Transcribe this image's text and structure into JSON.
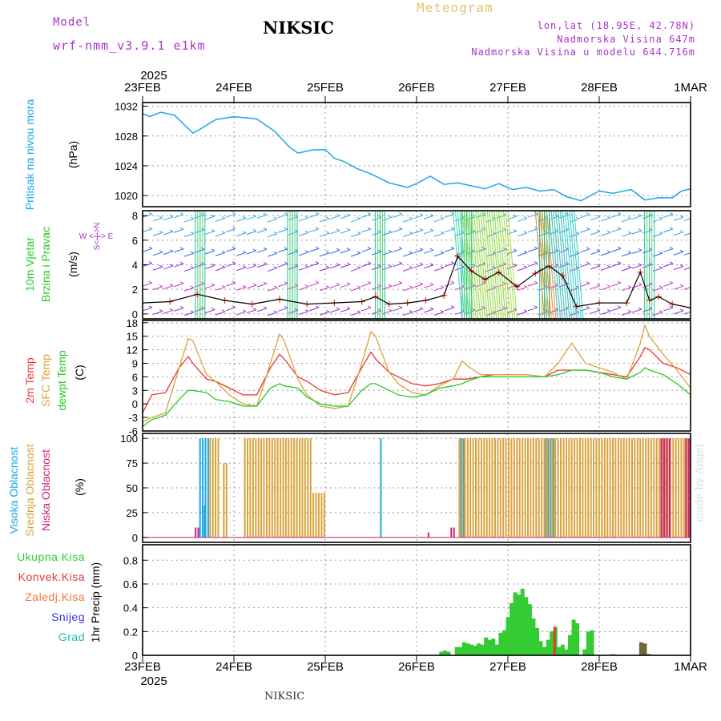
{
  "header": {
    "model_label": "Model",
    "model_value": "wrf-nmm_v3.9.1 e1km",
    "station": "NIKSIC",
    "title": "Meteogram",
    "lonlat": "lon,lat (18.95E, 42.78N)",
    "elevation": "Nadmorska Visina 647m",
    "model_elevation": "Nadmorska Visina u modelu 644.716m"
  },
  "footer": {
    "station": "NIKSIC",
    "credit": "made by Angel"
  },
  "colors": {
    "pressure": "#1aa6e8",
    "temp2m": "#ee3333",
    "sfc": "#d9a33b",
    "dew": "#22cc22",
    "high_cloud": "#1aa6e8",
    "mid_cloud": "#d9a33b",
    "low_cloud": "#cc2277",
    "total_precip": "#33cc33",
    "conv_precip": "#ee3333",
    "frz_precip": "#ee7733",
    "snow": "#3333ee",
    "graupel": "#22bbbb",
    "purple": "#aa33cc",
    "gold": "#e8c070"
  },
  "time_axis": {
    "year_top": "2025",
    "year_bottom": "2025",
    "dates": [
      "23FEB",
      "24FEB",
      "25FEB",
      "26FEB",
      "27FEB",
      "28FEB",
      "1MAR"
    ]
  },
  "chart_data": [
    {
      "type": "line",
      "panel": "pressure",
      "ylabel_lines": [
        "Pritisak na nivou mora",
        "(hPa)"
      ],
      "ylim": [
        1018.5,
        1032.5
      ],
      "yticks": [
        1020,
        1024,
        1028,
        1032
      ],
      "x_days": [
        0,
        0.08,
        0.2,
        0.35,
        0.45,
        0.55,
        0.6,
        0.8,
        1.0,
        1.25,
        1.45,
        1.6,
        1.7,
        1.85,
        2.0,
        2.1,
        2.2,
        2.35,
        2.5,
        2.7,
        2.9,
        3.0,
        3.15,
        3.3,
        3.45,
        3.6,
        3.75,
        3.9,
        4.05,
        4.2,
        4.35,
        4.5,
        4.65,
        4.8,
        5.0,
        5.15,
        5.35,
        5.5,
        5.65,
        5.8,
        5.9,
        6.0
      ],
      "series": [
        {
          "values": [
            1031.0,
            1030.6,
            1031.2,
            1030.8,
            1029.6,
            1028.4,
            1028.7,
            1030.2,
            1030.6,
            1030.3,
            1028.6,
            1026.6,
            1025.7,
            1026.1,
            1026.2,
            1025.0,
            1024.6,
            1023.6,
            1022.9,
            1021.7,
            1021.1,
            1021.6,
            1022.6,
            1021.5,
            1021.7,
            1021.3,
            1020.9,
            1021.6,
            1020.8,
            1021.1,
            1020.6,
            1020.8,
            1019.8,
            1019.3,
            1020.6,
            1020.3,
            1020.8,
            1019.4,
            1019.7,
            1019.7,
            1020.6,
            1020.9
          ]
        }
      ]
    },
    {
      "type": "line",
      "panel": "wind",
      "ylabel_lines": [
        "10m Vjetar",
        "Brzina i Pravac",
        "(m/s)"
      ],
      "compass_label": "W <-|-> E",
      "compass_vertical": "S<-|->N",
      "ylim": [
        -0.4,
        8.4
      ],
      "yticks": [
        0,
        2,
        4,
        6,
        8
      ],
      "x_days": [
        0,
        0.3,
        0.6,
        0.9,
        1.2,
        1.5,
        1.8,
        2.1,
        2.4,
        2.55,
        2.7,
        2.9,
        3.1,
        3.3,
        3.45,
        3.6,
        3.75,
        3.9,
        4.1,
        4.3,
        4.45,
        4.6,
        4.75,
        5.0,
        5.3,
        5.45,
        5.55,
        5.65,
        5.8,
        6.0
      ],
      "series": [
        {
          "values": [
            0.9,
            1.0,
            1.6,
            1.1,
            0.8,
            1.2,
            0.8,
            0.9,
            1.0,
            1.4,
            0.8,
            0.9,
            1.1,
            1.5,
            4.7,
            3.5,
            2.8,
            3.4,
            2.2,
            3.3,
            3.9,
            3.1,
            0.6,
            0.9,
            0.9,
            3.4,
            1.1,
            1.4,
            0.8,
            0.5
          ]
        }
      ]
    },
    {
      "type": "line",
      "panel": "temperature",
      "ylabel_lines": [
        "2m Temp",
        "SFC Temp",
        "dewpt Temp",
        "(C)"
      ],
      "ylim": [
        -6,
        18.5
      ],
      "yticks": [
        -6,
        -3,
        0,
        3,
        6,
        9,
        12,
        15,
        18
      ],
      "x_days": [
        0,
        0.1,
        0.25,
        0.4,
        0.5,
        0.55,
        0.7,
        0.8,
        0.95,
        1.1,
        1.25,
        1.4,
        1.5,
        1.55,
        1.7,
        1.8,
        1.95,
        2.1,
        2.25,
        2.4,
        2.5,
        2.55,
        2.7,
        2.8,
        2.95,
        3.1,
        3.25,
        3.4,
        3.5,
        3.55,
        3.7,
        3.85,
        4.0,
        4.2,
        4.4,
        4.55,
        4.7,
        4.85,
        5.0,
        5.15,
        5.3,
        5.45,
        5.5,
        5.55,
        5.7,
        5.85,
        6.0
      ],
      "series": [
        {
          "name": "2m Temp",
          "values": [
            -2.0,
            2.0,
            2.5,
            8.0,
            10.5,
            9.0,
            5.5,
            5.0,
            3.5,
            2.0,
            2.0,
            8.0,
            11.0,
            10.0,
            6.0,
            5.0,
            3.0,
            2.0,
            2.5,
            8.0,
            11.5,
            10.0,
            7.0,
            6.0,
            4.5,
            4.0,
            4.5,
            5.5,
            5.5,
            5.5,
            6.0,
            6.5,
            6.5,
            6.5,
            6.0,
            7.5,
            7.5,
            7.5,
            7.0,
            6.5,
            6.0,
            10.5,
            12.5,
            12.0,
            9.0,
            8.0,
            6.5
          ]
        },
        {
          "name": "SFC Temp",
          "values": [
            -4.0,
            -3.0,
            -2.0,
            8.0,
            14.5,
            14.0,
            6.5,
            5.0,
            2.0,
            0.0,
            -0.5,
            9.0,
            15.5,
            14.0,
            5.5,
            2.0,
            -0.5,
            -1.0,
            -0.5,
            9.0,
            16.0,
            15.0,
            7.0,
            4.5,
            2.5,
            2.0,
            4.0,
            5.5,
            9.5,
            8.5,
            6.5,
            6.5,
            6.5,
            6.5,
            6.0,
            9.0,
            13.5,
            9.0,
            8.0,
            7.0,
            5.5,
            13.5,
            17.5,
            15.0,
            11.0,
            7.5,
            3.5
          ]
        },
        {
          "name": "dewpt Temp",
          "values": [
            -5.0,
            -3.5,
            -2.5,
            1.0,
            3.0,
            3.0,
            2.5,
            1.0,
            0.5,
            -0.5,
            -0.5,
            3.5,
            4.5,
            4.0,
            3.5,
            1.5,
            0.0,
            -0.5,
            -0.5,
            3.0,
            4.5,
            4.5,
            3.0,
            2.0,
            1.5,
            2.0,
            3.5,
            4.0,
            4.5,
            5.0,
            6.0,
            6.0,
            6.0,
            6.0,
            6.0,
            6.5,
            7.5,
            7.5,
            7.0,
            6.0,
            5.5,
            7.0,
            8.0,
            7.5,
            6.5,
            4.5,
            2.0
          ]
        }
      ]
    },
    {
      "type": "bar",
      "panel": "cloud",
      "ylabel_lines": [
        "Visoka Oblacnost",
        "Srednja Oblacnost",
        "Niska Oblacnost",
        "(%)"
      ],
      "ylim": [
        -5,
        105
      ],
      "yticks": [
        0,
        25,
        50,
        75,
        100
      ],
      "series": [
        {
          "name": "Visoka Oblacnost",
          "segments": [
            [
              0.62,
              0.72,
              100
            ],
            [
              0.67,
              0.7,
              32
            ],
            [
              2.6,
              2.62,
              100
            ],
            [
              3.48,
              3.52,
              100
            ],
            [
              3.52,
              3.55,
              55
            ],
            [
              4.4,
              4.5,
              100
            ]
          ]
        },
        {
          "name": "Srednja Oblacnost",
          "segments": [
            [
              0.72,
              0.82,
              100
            ],
            [
              0.87,
              0.92,
              75
            ],
            [
              1.1,
              1.85,
              100
            ],
            [
              1.85,
              2.0,
              45
            ],
            [
              3.45,
              6.0,
              100
            ]
          ]
        },
        {
          "name": "Niska Oblacnost",
          "segments": [
            [
              0.55,
              0.6,
              10
            ],
            [
              3.1,
              3.12,
              5
            ],
            [
              3.35,
              3.4,
              10
            ],
            [
              5.65,
              5.75,
              100
            ],
            [
              5.92,
              5.98,
              100
            ]
          ]
        }
      ]
    },
    {
      "type": "bar",
      "panel": "precip",
      "ylabel_lines": [
        "1hr Precip (mm)"
      ],
      "legend": [
        "Ukupna Kisa",
        "Konvek.Kisa",
        "Zaledj.Kisa",
        "Snijeg",
        "Grad"
      ],
      "ylim": [
        0,
        0.93
      ],
      "yticks": [
        0,
        0.2,
        0.4,
        0.6,
        0.8
      ],
      "x_days": [
        3.27,
        3.31,
        3.35,
        3.44,
        3.48,
        3.52,
        3.56,
        3.6,
        3.64,
        3.68,
        3.72,
        3.76,
        3.8,
        3.84,
        3.88,
        3.92,
        3.96,
        4.0,
        4.04,
        4.08,
        4.12,
        4.16,
        4.2,
        4.24,
        4.28,
        4.32,
        4.36,
        4.4,
        4.44,
        4.48,
        4.52,
        4.56,
        4.6,
        4.64,
        4.68,
        4.72,
        4.76,
        4.84,
        4.88,
        4.92,
        5.15,
        5.46,
        5.5,
        5.54
      ],
      "series": [
        {
          "name": "Ukupna Kisa",
          "values": [
            0.03,
            0.04,
            0.03,
            0.07,
            0.07,
            0.11,
            0.1,
            0.09,
            0.08,
            0.1,
            0.09,
            0.15,
            0.13,
            0.14,
            0.09,
            0.19,
            0.21,
            0.32,
            0.44,
            0.53,
            0.51,
            0.56,
            0.49,
            0.43,
            0.31,
            0.23,
            0.12,
            0.07,
            0.13,
            0.2,
            0.24,
            0.07,
            0.09,
            0.05,
            0.17,
            0.3,
            0.27,
            0.05,
            0.2,
            0.21,
            0.01,
            0.11,
            0.1,
            0.01
          ]
        },
        {
          "name": "Konvek.Kisa",
          "values": [
            0,
            0,
            0,
            0,
            0,
            0,
            0,
            0,
            0,
            0,
            0,
            0,
            0,
            0,
            0,
            0,
            0,
            0,
            0,
            0,
            0,
            0,
            0,
            0,
            0,
            0,
            0,
            0,
            0,
            0,
            0.24,
            0,
            0,
            0,
            0,
            0,
            0,
            0,
            0,
            0,
            0,
            0,
            0,
            0
          ]
        }
      ]
    }
  ]
}
